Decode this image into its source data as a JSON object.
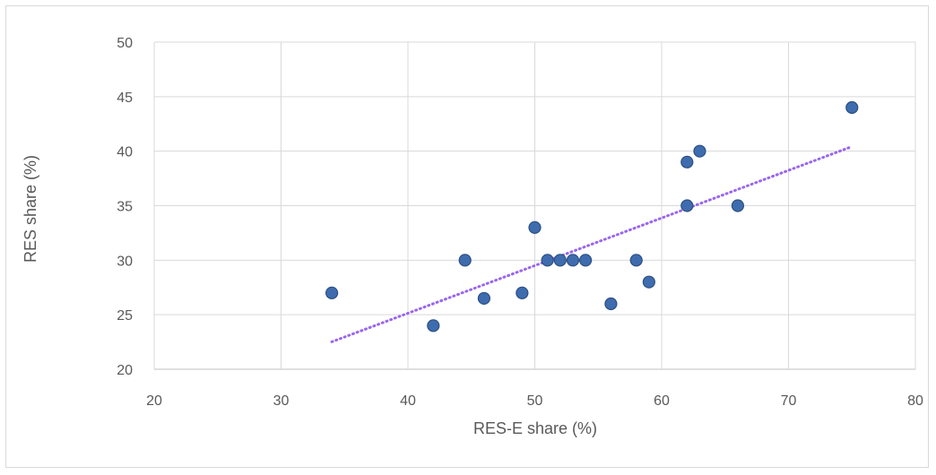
{
  "chart_data": {
    "type": "scatter",
    "title": "",
    "xlabel": "RES-E share (%)",
    "ylabel": "RES share (%)",
    "xlim": [
      20,
      80
    ],
    "ylim": [
      20,
      50
    ],
    "x_ticks": [
      "20",
      "30",
      "40",
      "50",
      "60",
      "70",
      "80"
    ],
    "y_ticks": [
      "20",
      "25",
      "30",
      "35",
      "40",
      "45",
      "50"
    ],
    "grid": true,
    "legend": "none",
    "trendline": {
      "type": "linear",
      "style": "dotted",
      "color": "#9966ee"
    },
    "marker_color": "#3f6cae",
    "marker_edge_color": "#2c4f82",
    "series": [
      {
        "points": [
          [
            34,
            27
          ],
          [
            42,
            24
          ],
          [
            44.5,
            30
          ],
          [
            46,
            26.5
          ],
          [
            49,
            27
          ],
          [
            50,
            33
          ],
          [
            51,
            30
          ],
          [
            52,
            30
          ],
          [
            53,
            30
          ],
          [
            54,
            30
          ],
          [
            56,
            26
          ],
          [
            58,
            30
          ],
          [
            59,
            28
          ],
          [
            62,
            39
          ],
          [
            62,
            35
          ],
          [
            63,
            40
          ],
          [
            66,
            35
          ],
          [
            75,
            44
          ]
        ]
      }
    ]
  }
}
